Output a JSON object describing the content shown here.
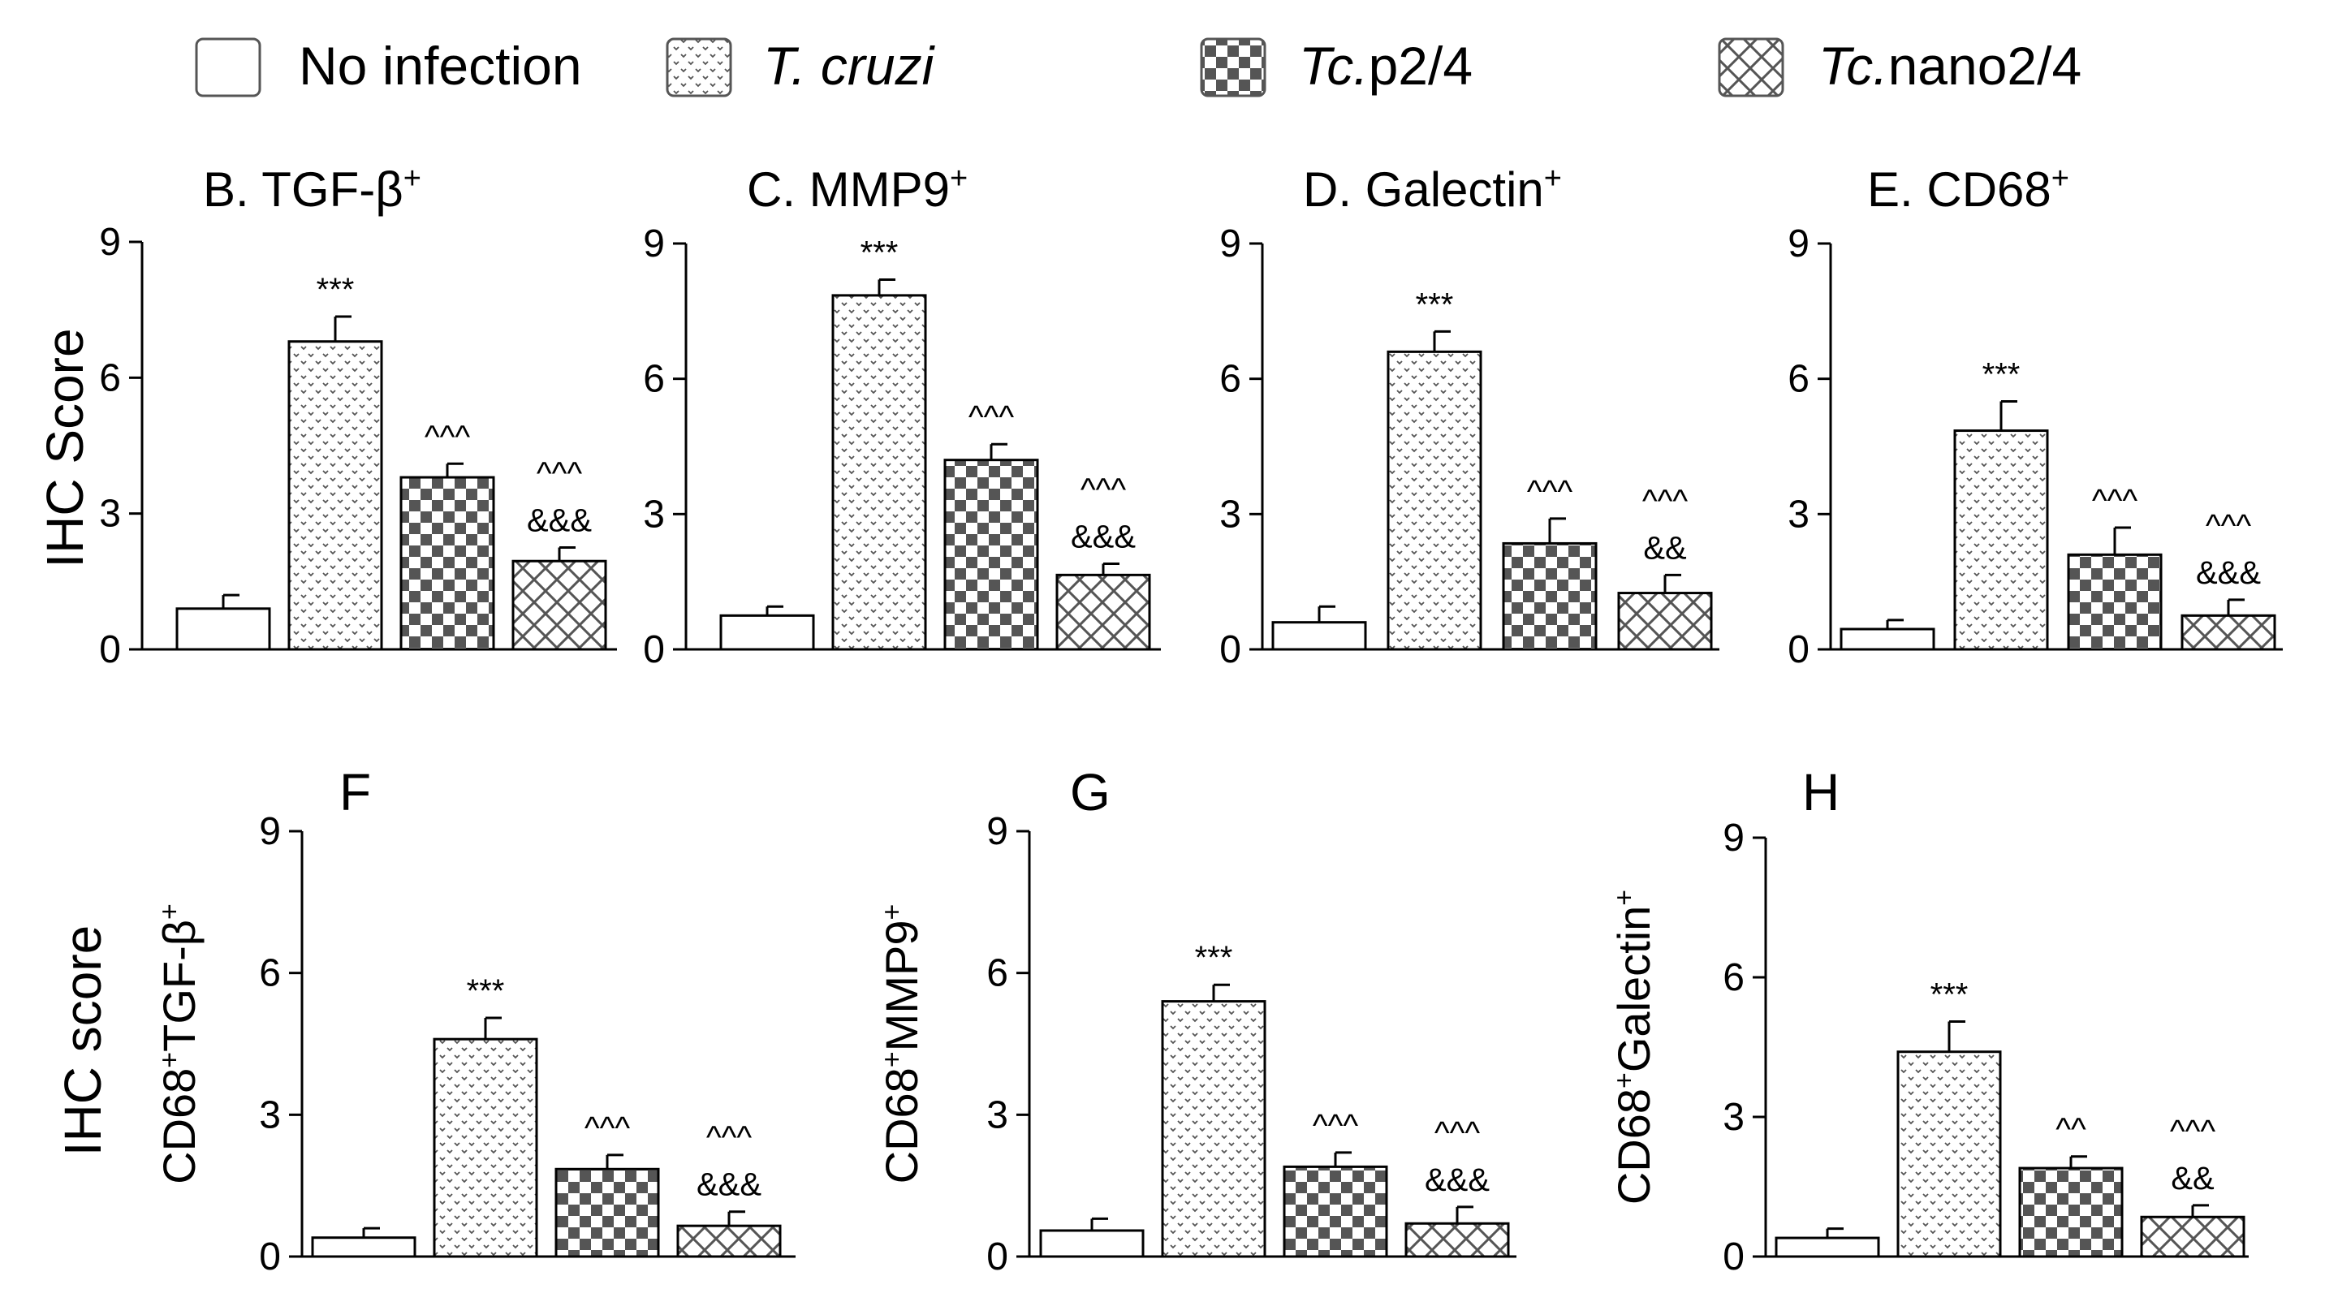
{
  "legend": [
    {
      "label": "No infection",
      "italic": false,
      "pattern": "none"
    },
    {
      "label_italic": "T. cruzi",
      "label_rest": "",
      "pattern": "dots"
    },
    {
      "label_italic": "Tc.",
      "label_rest": "p2/4",
      "pattern": "checker"
    },
    {
      "label_italic": "Tc.",
      "label_rest": "nano2/4",
      "pattern": "crosshatch"
    }
  ],
  "row_labels": {
    "top": "IHC Score",
    "bottom": "IHC score"
  },
  "chart_data": [
    {
      "type": "bar",
      "title": "B. TGF-β",
      "title_sup": "+",
      "ylabel": "",
      "ylim": [
        0,
        9
      ],
      "yticks": [
        0,
        3,
        6,
        9
      ],
      "categories": [
        "No infection",
        "T. cruzi",
        "Tc.p2/4",
        "Tc.nano2/4"
      ],
      "values": [
        0.9,
        6.8,
        3.8,
        1.95
      ],
      "errors": [
        0.3,
        0.55,
        0.3,
        0.3
      ],
      "annotations": [
        [],
        [
          "***"
        ],
        [
          "^^^"
        ],
        [
          "^^^",
          "&&&"
        ]
      ]
    },
    {
      "type": "bar",
      "title": "C. MMP9",
      "title_sup": "+",
      "ylabel": "",
      "ylim": [
        0,
        9
      ],
      "yticks": [
        0,
        3,
        6,
        9
      ],
      "categories": [
        "No infection",
        "T. cruzi",
        "Tc.p2/4",
        "Tc.nano2/4"
      ],
      "values": [
        0.75,
        7.85,
        4.2,
        1.65
      ],
      "errors": [
        0.2,
        0.35,
        0.35,
        0.25
      ],
      "annotations": [
        [],
        [
          "***"
        ],
        [
          "^^^"
        ],
        [
          "^^^",
          "&&&"
        ]
      ]
    },
    {
      "type": "bar",
      "title": "D. Galectin",
      "title_sup": "+",
      "ylabel": "",
      "ylim": [
        0,
        9
      ],
      "yticks": [
        0,
        3,
        6,
        9
      ],
      "categories": [
        "No infection",
        "T. cruzi",
        "Tc.p2/4",
        "Tc.nano2/4"
      ],
      "values": [
        0.6,
        6.6,
        2.35,
        1.25
      ],
      "errors": [
        0.35,
        0.45,
        0.55,
        0.4
      ],
      "annotations": [
        [],
        [
          "***"
        ],
        [
          "^^^"
        ],
        [
          "^^^",
          "&&"
        ]
      ]
    },
    {
      "type": "bar",
      "title": "E. CD68",
      "title_sup": "+",
      "ylabel": "",
      "ylim": [
        0,
        9
      ],
      "yticks": [
        0,
        3,
        6,
        9
      ],
      "categories": [
        "No infection",
        "T. cruzi",
        "Tc.p2/4",
        "Tc.nano2/4"
      ],
      "values": [
        0.45,
        4.85,
        2.1,
        0.75
      ],
      "errors": [
        0.2,
        0.65,
        0.6,
        0.35
      ],
      "annotations": [
        [],
        [
          "***"
        ],
        [
          "^^^"
        ],
        [
          "^^^",
          "&&&"
        ]
      ]
    },
    {
      "type": "bar",
      "title": "F",
      "title_sup": "",
      "ylabel": "CD68+TGF-β+",
      "ylim": [
        0,
        9
      ],
      "yticks": [
        0,
        3,
        6,
        9
      ],
      "categories": [
        "No infection",
        "T. cruzi",
        "Tc.p2/4",
        "Tc.nano2/4"
      ],
      "values": [
        0.4,
        4.6,
        1.85,
        0.65
      ],
      "errors": [
        0.2,
        0.45,
        0.3,
        0.3
      ],
      "annotations": [
        [],
        [
          "***"
        ],
        [
          "^^^"
        ],
        [
          "^^^",
          "&&&"
        ]
      ]
    },
    {
      "type": "bar",
      "title": "G",
      "title_sup": "",
      "ylabel": "CD68+MMP9+",
      "ylim": [
        0,
        9
      ],
      "yticks": [
        0,
        3,
        6,
        9
      ],
      "categories": [
        "No infection",
        "T. cruzi",
        "Tc.p2/4",
        "Tc.nano2/4"
      ],
      "values": [
        0.55,
        5.4,
        1.9,
        0.7
      ],
      "errors": [
        0.25,
        0.35,
        0.3,
        0.35
      ],
      "annotations": [
        [],
        [
          "***"
        ],
        [
          "^^^"
        ],
        [
          "^^^",
          "&&&"
        ]
      ]
    },
    {
      "type": "bar",
      "title": "H",
      "title_sup": "",
      "ylabel": "CD68+Galectin+",
      "ylim": [
        0,
        9
      ],
      "yticks": [
        0,
        3,
        6,
        9
      ],
      "categories": [
        "No infection",
        "T. cruzi",
        "Tc.p2/4",
        "Tc.nano2/4"
      ],
      "values": [
        0.4,
        4.4,
        1.9,
        0.85
      ],
      "errors": [
        0.2,
        0.65,
        0.25,
        0.25
      ],
      "annotations": [
        [],
        [
          "***"
        ],
        [
          "^^"
        ],
        [
          "^^^",
          "&&"
        ]
      ]
    }
  ]
}
